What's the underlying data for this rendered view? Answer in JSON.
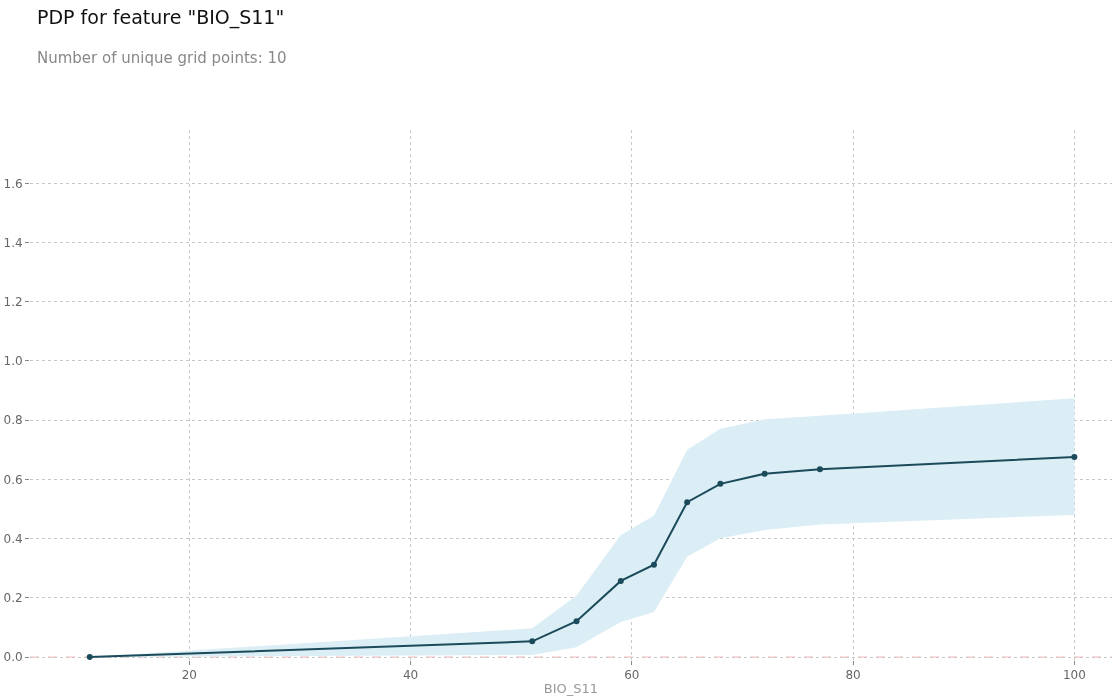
{
  "chart_data": {
    "type": "line",
    "title": "PDP for feature \"BIO_S11\"",
    "subtitle": "Number of unique grid points: 10",
    "xlabel": "BIO_S11",
    "x": [
      11,
      51,
      55,
      59,
      62,
      65,
      68,
      72,
      77,
      100
    ],
    "series": [
      {
        "color": "#1b4a5a",
        "values": [
          0.0,
          0.053,
          0.121,
          0.257,
          0.312,
          0.523,
          0.585,
          0.619,
          0.634,
          0.676
        ],
        "lower": [
          0.0,
          0.007,
          0.033,
          0.118,
          0.152,
          0.339,
          0.401,
          0.429,
          0.448,
          0.48
        ],
        "upper": [
          0.0,
          0.097,
          0.208,
          0.412,
          0.478,
          0.7,
          0.771,
          0.803,
          0.815,
          0.874
        ]
      }
    ],
    "xlim": [
      5.6,
      103.4
    ],
    "ylim": [
      -0.01,
      1.78
    ],
    "xticks": [
      20,
      40,
      60,
      80,
      100
    ],
    "yticks": [
      {
        "value": 0,
        "label": "0.0"
      },
      0.2,
      0.4,
      0.6,
      0.8,
      {
        "value": 1,
        "label": "1.0"
      },
      1.2,
      1.4,
      1.6
    ],
    "ref_lines": [
      {
        "axis": "y",
        "value": 0,
        "color": "#f5b5b5",
        "line_style": "dashed"
      }
    ],
    "grid": true,
    "marker": "circle",
    "line_style": "solid"
  }
}
